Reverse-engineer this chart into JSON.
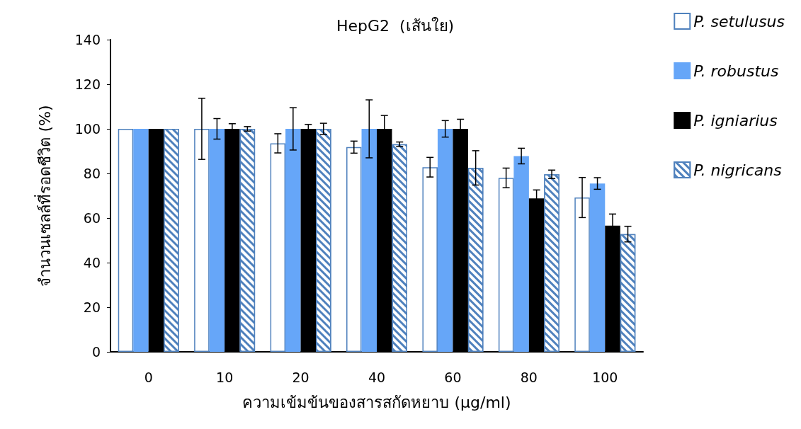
{
  "chart_data": {
    "type": "bar",
    "title": "HepG2  (เส้นใย)",
    "xlabel": "ความเข้มข้นของสารสกัดหยาบ (µg/ml)",
    "ylabel": "จำนวนเซลล์ที่รอดชีวิต (%)",
    "categories": [
      "0",
      "10",
      "20",
      "40",
      "60",
      "80",
      "100"
    ],
    "series": [
      {
        "name": "P. setulusus",
        "color": "#ffffff",
        "values": [
          100,
          100,
          93.5,
          91.8,
          82.8,
          78,
          69.2
        ],
        "errors": [
          null,
          13.7,
          4.3,
          2.7,
          4.4,
          4.4,
          9
        ]
      },
      {
        "name": "P. robustus",
        "color": "#66a6f8",
        "values": [
          100,
          100,
          100,
          100,
          100,
          87.8,
          75.5
        ],
        "errors": [
          null,
          4.6,
          9.5,
          13,
          3.7,
          3.5,
          2.6
        ]
      },
      {
        "name": "P. igniarius",
        "color": "#000000",
        "values": [
          100,
          100,
          100,
          100,
          100,
          68.8,
          56.6
        ],
        "errors": [
          null,
          2.3,
          2,
          6,
          4.3,
          3.8,
          5.2
        ]
      },
      {
        "name": "P. nigricans",
        "color": "#4f81bd",
        "values": [
          100,
          100,
          100,
          93.1,
          82.5,
          79.6,
          52.8
        ],
        "errors": [
          null,
          1,
          2.5,
          1,
          7.7,
          1.9,
          3.5
        ]
      }
    ],
    "ylim": [
      0,
      140
    ],
    "yticks": [
      0,
      20,
      40,
      60,
      80,
      100,
      120,
      140
    ],
    "grid": false,
    "legend": "top right"
  }
}
